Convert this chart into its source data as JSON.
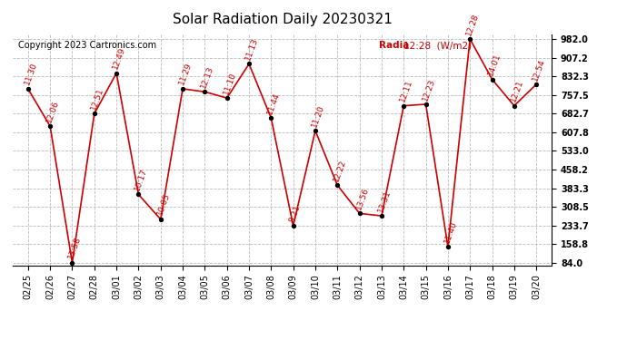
{
  "title": "Solar Radiation Daily 20230321",
  "copyright": "Copyright 2023 Cartronics.com",
  "legend_text": "Radia12:28  (W/m2)",
  "legend_part1": "Radia",
  "legend_part2": "12:28  (W/m2)",
  "x_labels": [
    "02/25",
    "02/26",
    "02/27",
    "02/28",
    "03/01",
    "03/02",
    "03/03",
    "03/04",
    "03/05",
    "03/06",
    "03/07",
    "03/08",
    "03/09",
    "03/10",
    "03/11",
    "03/12",
    "03/13",
    "03/14",
    "03/15",
    "03/16",
    "03/17",
    "03/18",
    "03/19",
    "03/20"
  ],
  "y_values": [
    782,
    632,
    84,
    682,
    845,
    358,
    258,
    782,
    770,
    745,
    882,
    665,
    232,
    614,
    395,
    282,
    272,
    714,
    720,
    148,
    982,
    820,
    714,
    800
  ],
  "point_labels": [
    "11:30",
    "12:06",
    "13:58",
    "12:51",
    "12:49",
    "10:17",
    "10:05",
    "11:29",
    "12:13",
    "11:10",
    "11:13",
    "11:44",
    "8:21",
    "11:20",
    "12:22",
    "13:56",
    "13:31",
    "12:11",
    "12:23",
    "11:40",
    "12:28",
    "14:01",
    "12:21",
    "12:54"
  ],
  "yticks": [
    84.0,
    158.8,
    233.7,
    308.5,
    383.3,
    458.2,
    533.0,
    607.8,
    682.7,
    757.5,
    832.3,
    907.2,
    982.0
  ],
  "ymin": 84.0,
  "ymax": 982.0,
  "line_color": "#cc0000",
  "marker_color": "black",
  "background_color": "white",
  "grid_color": "#bbbbbb",
  "title_fontsize": 11,
  "label_fontsize": 6.5,
  "tick_fontsize": 7,
  "copyright_fontsize": 7
}
